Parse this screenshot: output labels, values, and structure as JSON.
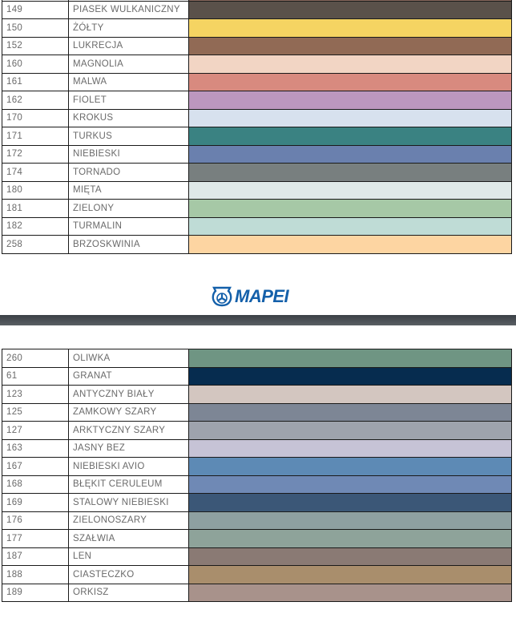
{
  "table_top": {
    "rows": [
      {
        "code": "",
        "name": "",
        "color": "#8a6a5e"
      },
      {
        "code": "149",
        "name": "PIASEK WULKANICZNY",
        "color": "#5a514a"
      },
      {
        "code": "150",
        "name": "ŻÓŁTY",
        "color": "#f5d462"
      },
      {
        "code": "152",
        "name": "LUKRECJA",
        "color": "#916a55"
      },
      {
        "code": "160",
        "name": "MAGNOLIA",
        "color": "#f2d5c4"
      },
      {
        "code": "161",
        "name": "MALWA",
        "color": "#d88a7f"
      },
      {
        "code": "162",
        "name": "FIOLET",
        "color": "#bc97bf"
      },
      {
        "code": "170",
        "name": "KROKUS",
        "color": "#d7e1ee"
      },
      {
        "code": "171",
        "name": "TURKUS",
        "color": "#3a8282"
      },
      {
        "code": "172",
        "name": "NIEBIESKI",
        "color": "#6a80ae"
      },
      {
        "code": "174",
        "name": "TORNADO",
        "color": "#787f7f"
      },
      {
        "code": "180",
        "name": "MIĘTA",
        "color": "#dfe9e8"
      },
      {
        "code": "181",
        "name": "ZIELONY",
        "color": "#a6c8a6"
      },
      {
        "code": "182",
        "name": "TURMALIN",
        "color": "#bfdcd6"
      },
      {
        "code": "258",
        "name": "BRZOSKWINIA",
        "color": "#fdd5a2"
      }
    ]
  },
  "logo": {
    "text": "MAPEI",
    "color": "#1460aa"
  },
  "table_bottom": {
    "rows": [
      {
        "code": "260",
        "name": "OLIWKA",
        "color": "#6f9583"
      },
      {
        "code": "61",
        "name": "GRANAT",
        "color": "#062c4f"
      },
      {
        "code": "123",
        "name": "ANTYCZNY BIAŁY",
        "color": "#d3c6c0"
      },
      {
        "code": "125",
        "name": "ZAMKOWY SZARY",
        "color": "#7d8695"
      },
      {
        "code": "127",
        "name": "ARKTYCZNY SZARY",
        "color": "#9ea3ad"
      },
      {
        "code": "163",
        "name": "JASNY BEZ",
        "color": "#c6c3d6"
      },
      {
        "code": "167",
        "name": "NIEBIESKI AVIO",
        "color": "#5d8ab5"
      },
      {
        "code": "168",
        "name": "BŁĘKIT CERULEUM",
        "color": "#6f89b5"
      },
      {
        "code": "169",
        "name": "STALOWY NIEBIESKI",
        "color": "#3b5777"
      },
      {
        "code": "176",
        "name": "ZIELONOSZARY",
        "color": "#8ea0a1"
      },
      {
        "code": "177",
        "name": "SZAŁWIA",
        "color": "#8ea39a"
      },
      {
        "code": "187",
        "name": "LEN",
        "color": "#8a7a74"
      },
      {
        "code": "188",
        "name": "CIASTECZKO",
        "color": "#a98e6c"
      },
      {
        "code": "189",
        "name": "ORKISZ",
        "color": "#a8928b"
      }
    ]
  }
}
